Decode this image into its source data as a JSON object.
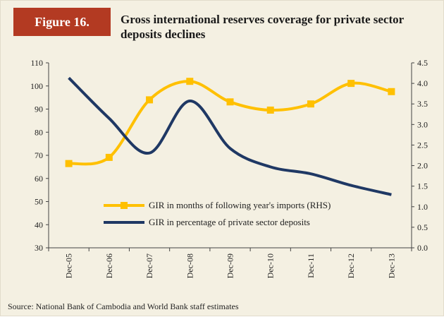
{
  "figure_label": "Figure 16.",
  "title": "Gross international reserves coverage for private sector deposits declines",
  "source": "Source: National Bank of Cambodia and World Bank staff estimates",
  "colors": {
    "gir_months": "#ffc000",
    "gir_percent": "#1f3864",
    "label_bg": "#b33a22",
    "panel_bg": "#f4f0e2"
  },
  "chart_data": {
    "type": "line",
    "categories": [
      "Dec-05",
      "Dec-06",
      "Dec-07",
      "Dec-08",
      "Dec-09",
      "Dec-10",
      "Dec-11",
      "Dec-12",
      "Dec-13"
    ],
    "left_axis": {
      "ylim": [
        30,
        110
      ],
      "ticks": [
        "30",
        "40",
        "50",
        "60",
        "70",
        "80",
        "90",
        "100",
        "110"
      ]
    },
    "right_axis": {
      "ylim": [
        0,
        4.5
      ],
      "ticks": [
        "0.0",
        "0.5",
        "1.0",
        "1.5",
        "2.0",
        "2.5",
        "3.0",
        "3.5",
        "4.0",
        "4.5"
      ]
    },
    "series": [
      {
        "name": "GIR in months of following year's imports (RHS)",
        "axis": "right",
        "marker": "square",
        "color": "#ffc000",
        "values": [
          2.05,
          2.2,
          3.6,
          4.05,
          3.55,
          3.35,
          3.5,
          4.0,
          3.8
        ]
      },
      {
        "name": "GIR in percentage of private sector deposits",
        "axis": "left",
        "marker": "none",
        "color": "#1f3864",
        "points": [
          {
            "x": "Dec-05",
            "y": 103.5
          },
          {
            "x": "Dec-06",
            "y": 86
          },
          {
            "x": "Dec-07",
            "y": 71
          },
          {
            "x": "Dec-08",
            "y": 93.5
          },
          {
            "x": "Dec-09",
            "y": 73
          },
          {
            "x": "Dec-10",
            "y": 65
          },
          {
            "x": "Dec-11",
            "y": 62
          },
          {
            "x": "Dec-12",
            "y": 57
          },
          {
            "x": "Dec-13",
            "y": 53
          }
        ]
      }
    ],
    "legend": "inside-bottom"
  }
}
